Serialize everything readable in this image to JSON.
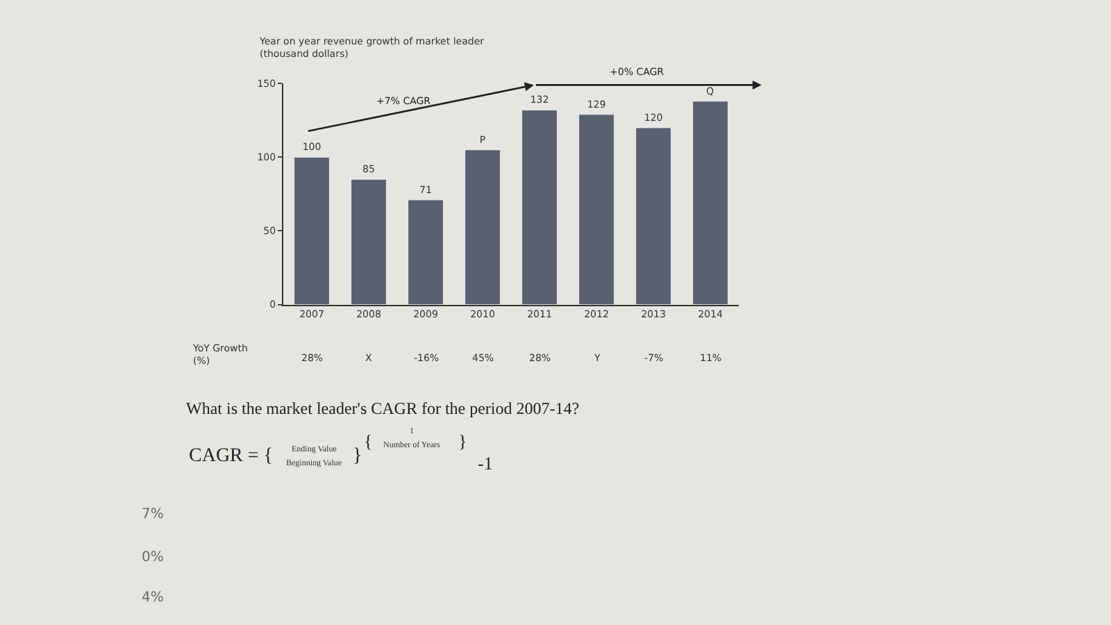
{
  "chart_data": {
    "type": "bar",
    "title": "Year on year revenue growth of market leader",
    "subtitle": "(thousand dollars)",
    "categories": [
      "2007",
      "2008",
      "2009",
      "2010",
      "2011",
      "2012",
      "2013",
      "2014"
    ],
    "values": [
      100,
      85,
      71,
      105,
      132,
      129,
      120,
      138
    ],
    "value_labels": [
      "100",
      "85",
      "71",
      "P",
      "132",
      "129",
      "120",
      "Q"
    ],
    "color": "#58626e",
    "ylim": [
      0,
      150
    ],
    "yticks": [
      0,
      50,
      100,
      150
    ],
    "grid": false,
    "legend": false,
    "annotations": [
      "+7% CAGR",
      "+0% CAGR",
      "YoY Growth\n(%)",
      "28%",
      "X",
      "-16%",
      "45%",
      "28%",
      "Y",
      "-7%",
      "11%",
      "What is the market leader's CAGR for the period 2007-14?",
      "CAGR = {",
      "Ending Value",
      "Beginning Value",
      "}",
      "{",
      "1",
      "Number of Years",
      "}",
      "-1",
      "7%",
      "0%",
      "4%"
    ]
  }
}
